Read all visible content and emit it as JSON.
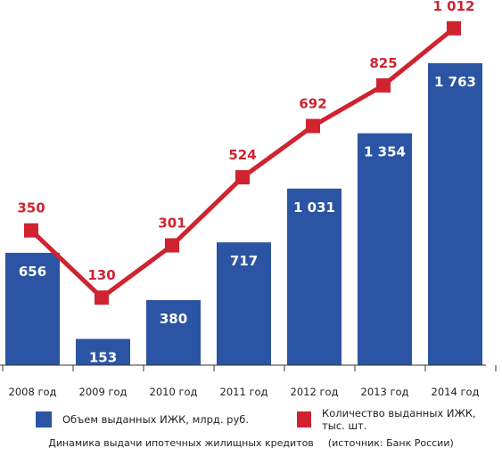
{
  "chart_data": {
    "type": "bar+line",
    "categories": [
      "2008 год",
      "2009 год",
      "2010 год",
      "2011 год",
      "2012 год",
      "2013 год",
      "2014 год"
    ],
    "series": [
      {
        "name": "Объем выданных ИЖК, млрд. руб.",
        "type": "bar",
        "values": [
          656,
          153,
          380,
          717,
          1031,
          1354,
          1763
        ],
        "labels": [
          "656",
          "153",
          "380",
          "717",
          "1 031",
          "1 354",
          "1 763"
        ],
        "color": "#2b54a4"
      },
      {
        "name": "Количество выданных ИЖК, тыс. шт.",
        "type": "line",
        "values": [
          350,
          130,
          301,
          524,
          692,
          825,
          1012
        ],
        "labels": [
          "350",
          "130",
          "301",
          "524",
          "692",
          "825",
          "1 012"
        ],
        "color": "#cf2330"
      }
    ],
    "title": "Динамика выдачи ипотечных жилищных кредитов",
    "source": "(источник: Банк России)",
    "legend": "bottom"
  }
}
